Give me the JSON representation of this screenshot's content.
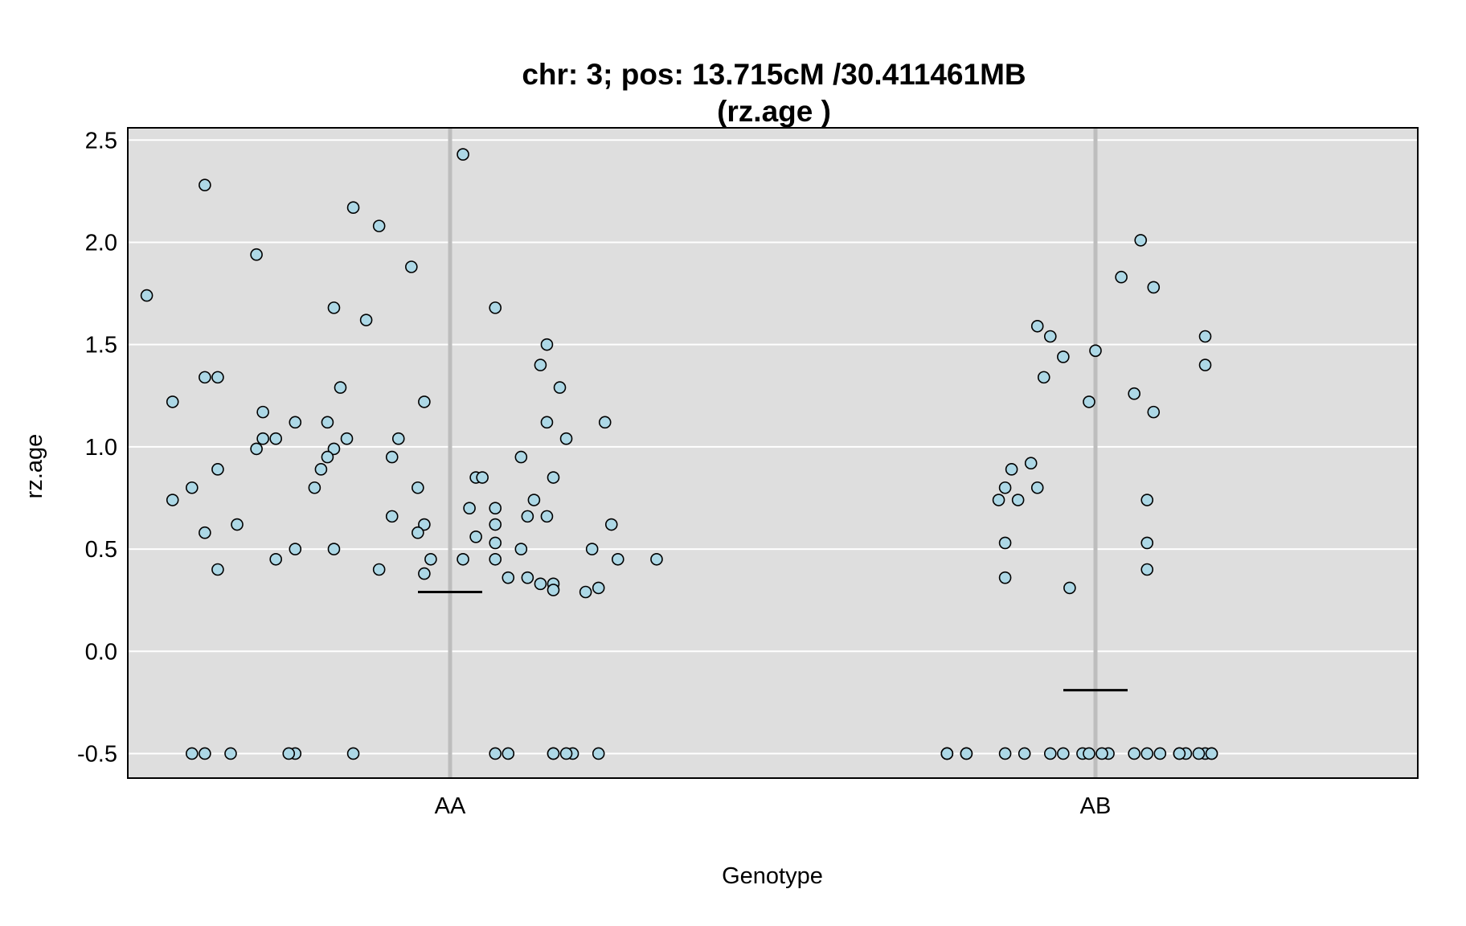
{
  "chart_data": {
    "type": "scatter",
    "title": "chr: 3; pos: 13.715cM /30.411461MB",
    "subtitle": "(rz.age )",
    "xlabel": "Genotype",
    "ylabel": "rz.age",
    "categories": [
      "AA",
      "AB"
    ],
    "ylim": [
      -0.62,
      2.56
    ],
    "yticks": [
      "2.5",
      "2.0",
      "1.5",
      "1.0",
      "0.5",
      "0.0",
      "-0.5"
    ],
    "grid": true,
    "colors": {
      "panel": "#dedede",
      "grid": "#ffffff",
      "category_line": "#bdbdbd",
      "point_fill": "#add8e6",
      "point_stroke": "#000000",
      "mean_line": "#000000"
    },
    "mean_lines": [
      {
        "category": "AA",
        "value": 0.29
      },
      {
        "category": "AB",
        "value": -0.19
      }
    ],
    "series": [
      {
        "category": "AA",
        "jitter": [
          0.02,
          -0.38,
          -0.15,
          -0.11,
          -0.3,
          -0.06,
          -0.47,
          -0.18,
          0.07,
          -0.13,
          0.15,
          0.14,
          -0.38,
          -0.36,
          -0.17,
          0.17,
          -0.43,
          -0.04,
          -0.29,
          -0.24,
          -0.19,
          0.24,
          0.15,
          -0.16,
          0.18,
          -0.27,
          -0.29,
          -0.08,
          -0.18,
          -0.3,
          -0.19,
          0.11,
          -0.09,
          -0.36,
          -0.2,
          0.04,
          0.05,
          0.16,
          -0.21,
          -0.4,
          -0.05,
          -0.43,
          0.13,
          0.07,
          0.03,
          0.12,
          0.15,
          -0.09,
          0.07,
          0.25,
          -0.33,
          -0.04,
          -0.38,
          -0.05,
          0.04,
          0.07,
          -0.24,
          -0.18,
          0.11,
          0.22,
          0.07,
          -0.03,
          0.02,
          0.26,
          0.32,
          -0.27,
          -0.36,
          -0.11,
          -0.04,
          0.12,
          0.09,
          0.14,
          0.16,
          0.23,
          0.16,
          0.21,
          0.23,
          -0.34,
          -0.24,
          0.07,
          0.16,
          -0.15,
          0.09,
          0.16,
          -0.38,
          0.19,
          -0.25,
          0.18,
          -0.4
        ],
        "values": [
          2.43,
          2.28,
          2.17,
          2.08,
          1.94,
          1.88,
          1.74,
          1.68,
          1.68,
          1.62,
          1.5,
          1.4,
          1.34,
          1.34,
          1.29,
          1.29,
          1.22,
          1.22,
          1.17,
          1.12,
          1.12,
          1.12,
          1.12,
          1.04,
          1.04,
          1.04,
          1.04,
          1.04,
          0.99,
          0.99,
          0.95,
          0.95,
          0.95,
          0.89,
          0.89,
          0.85,
          0.85,
          0.85,
          0.8,
          0.8,
          0.8,
          0.74,
          0.74,
          0.7,
          0.7,
          0.66,
          0.66,
          0.66,
          0.62,
          0.62,
          0.62,
          0.62,
          0.58,
          0.58,
          0.56,
          0.53,
          0.5,
          0.5,
          0.5,
          0.5,
          0.45,
          0.45,
          0.45,
          0.45,
          0.45,
          0.45,
          0.4,
          0.4,
          0.38,
          0.36,
          0.36,
          0.33,
          0.33,
          0.31,
          0.3,
          0.29,
          -0.5,
          -0.5,
          -0.5,
          -0.5,
          -0.5,
          -0.5,
          -0.5,
          -0.5,
          -0.5,
          -0.5,
          -0.5,
          -0.5,
          -0.5
        ]
      },
      {
        "category": "AB",
        "jitter": [
          0.07,
          0.04,
          0.09,
          -0.09,
          -0.07,
          0.17,
          0.0,
          -0.05,
          0.17,
          -0.08,
          0.06,
          -0.01,
          0.09,
          -0.1,
          -0.13,
          -0.09,
          -0.14,
          0.08,
          -0.12,
          -0.15,
          0.08,
          -0.14,
          0.08,
          -0.14,
          -0.04,
          0.06,
          0.18,
          -0.23,
          -0.2,
          0.17,
          -0.23,
          -0.02,
          0.13,
          -0.14,
          0.1,
          -0.07,
          0.02,
          0.14,
          -0.05,
          0.13,
          -0.23,
          0.01,
          -0.01,
          0.08,
          0.18,
          -0.2,
          -0.11,
          0.16
        ],
        "values": [
          2.01,
          1.83,
          1.78,
          1.59,
          1.54,
          1.54,
          1.47,
          1.44,
          1.4,
          1.34,
          1.26,
          1.22,
          1.17,
          0.92,
          0.89,
          0.8,
          0.8,
          0.74,
          0.74,
          0.74,
          0.53,
          0.53,
          0.4,
          0.36,
          0.31,
          -0.5,
          -0.5,
          -0.5,
          -0.5,
          -0.5,
          -0.5,
          -0.5,
          -0.5,
          -0.5,
          -0.5,
          -0.5,
          -0.5,
          -0.5,
          -0.5,
          -0.5,
          -0.5,
          -0.5,
          -0.5,
          -0.5,
          -0.5,
          -0.5,
          -0.5,
          -0.5
        ]
      }
    ]
  }
}
